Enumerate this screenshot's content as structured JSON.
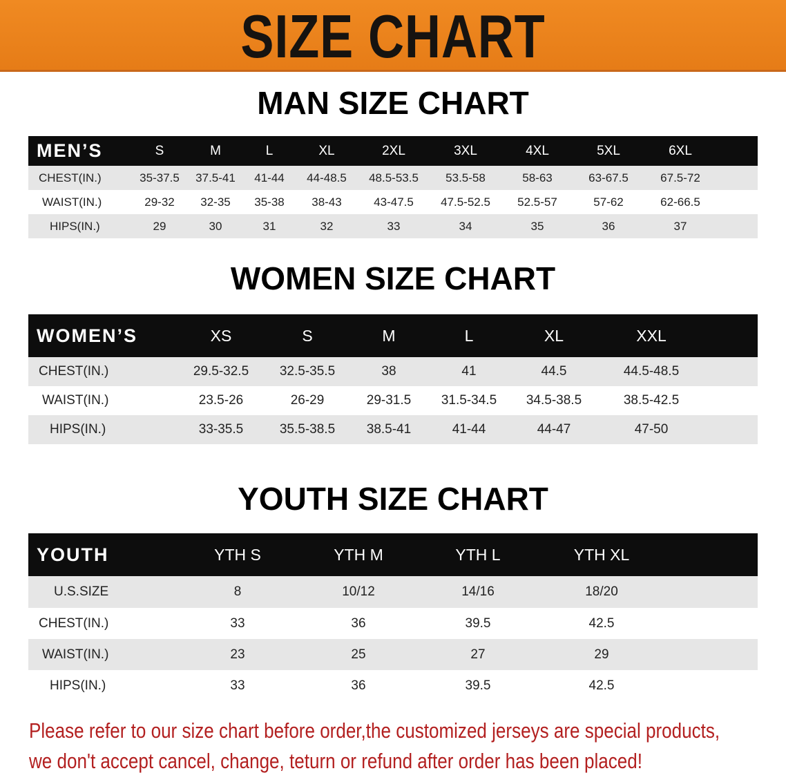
{
  "title": "SIZE CHART",
  "colors": {
    "banner": "#ec831d",
    "header": "#0d0d0d",
    "row_alt": "#e6e6e6",
    "note": "#b32020"
  },
  "men": {
    "section_title": "MAN SIZE CHART",
    "header": "MEN’S",
    "sizes": [
      "S",
      "M",
      "L",
      "XL",
      "2XL",
      "3XL",
      "4XL",
      "5XL",
      "6XL"
    ],
    "rows": [
      {
        "label": "CHEST(IN.)",
        "values": [
          "35-37.5",
          "37.5-41",
          "41-44",
          "44-48.5",
          "48.5-53.5",
          "53.5-58",
          "58-63",
          "63-67.5",
          "67.5-72"
        ]
      },
      {
        "label": "WAIST(IN.)",
        "values": [
          "29-32",
          "32-35",
          "35-38",
          "38-43",
          "43-47.5",
          "47.5-52.5",
          "52.5-57",
          "57-62",
          "62-66.5"
        ]
      },
      {
        "label": "HIPS(IN.)",
        "values": [
          "29",
          "30",
          "31",
          "32",
          "33",
          "34",
          "35",
          "36",
          "37"
        ]
      }
    ]
  },
  "women": {
    "section_title": "WOMEN SIZE CHART",
    "header": "WOMEN’S",
    "sizes": [
      "XS",
      "S",
      "M",
      "L",
      "XL",
      "XXL"
    ],
    "rows": [
      {
        "label": "CHEST(IN.)",
        "values": [
          "29.5-32.5",
          "32.5-35.5",
          "38",
          "41",
          "44.5",
          "44.5-48.5"
        ]
      },
      {
        "label": "WAIST(IN.)",
        "values": [
          "23.5-26",
          "26-29",
          "29-31.5",
          "31.5-34.5",
          "34.5-38.5",
          "38.5-42.5"
        ]
      },
      {
        "label": "HIPS(IN.)",
        "values": [
          "33-35.5",
          "35.5-38.5",
          "38.5-41",
          "41-44",
          "44-47",
          "47-50"
        ]
      }
    ]
  },
  "youth": {
    "section_title": "YOUTH SIZE CHART",
    "header": "YOUTH",
    "sizes": [
      "YTH S",
      "YTH M",
      "YTH L",
      "YTH XL"
    ],
    "rows": [
      {
        "label": "U.S.SIZE",
        "values": [
          "8",
          "10/12",
          "14/16",
          "18/20"
        ]
      },
      {
        "label": "CHEST(IN.)",
        "values": [
          "33",
          "36",
          "39.5",
          "42.5"
        ]
      },
      {
        "label": "WAIST(IN.)",
        "values": [
          "23",
          "25",
          "27",
          "29"
        ]
      },
      {
        "label": "HIPS(IN.)",
        "values": [
          "33",
          "36",
          "39.5",
          "42.5"
        ]
      }
    ]
  },
  "note": {
    "line1": "Please refer to our size chart before order,the customized jerseys are special products,",
    "line2": "we don't accept cancel, change, teturn or refund after order has been placed!"
  }
}
